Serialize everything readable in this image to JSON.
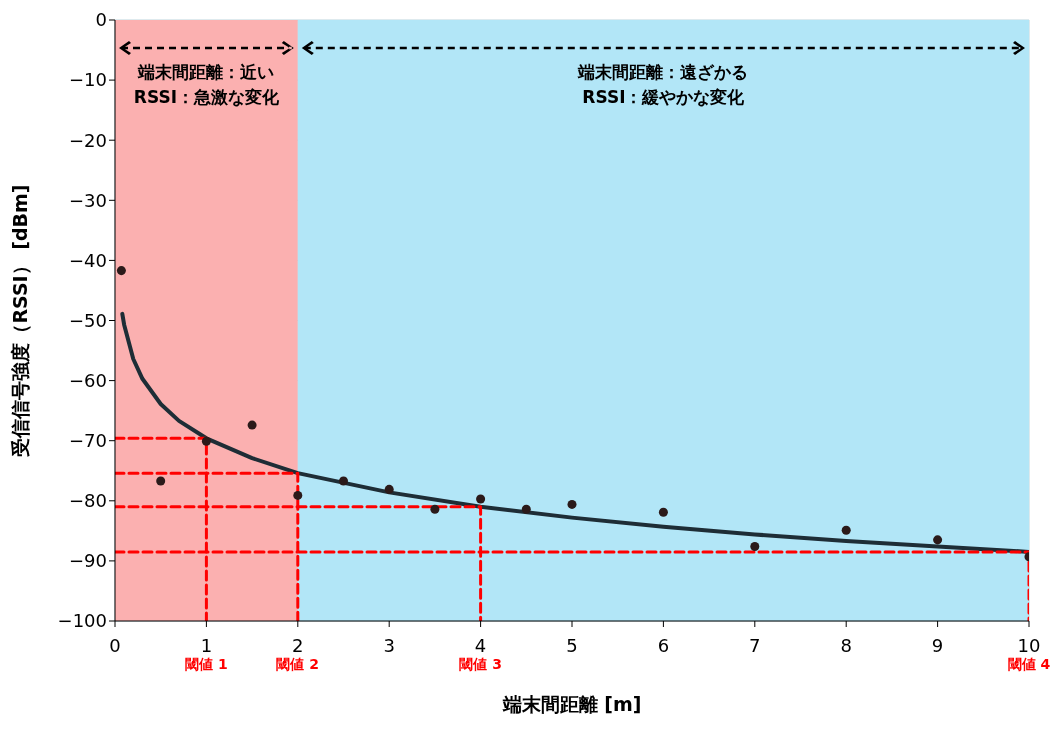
{
  "chart_data": {
    "type": "scatter",
    "xlabel": "端末間距離 [m]",
    "ylabel": "受信信号強度（RSSI） [dBm]",
    "xlim": [
      0,
      10
    ],
    "xticks": [
      0,
      1,
      2,
      3,
      4,
      5,
      6,
      7,
      8,
      9,
      10
    ],
    "ylim": [
      -100,
      0
    ],
    "yticks": [
      0,
      {
        "value": -10,
        "label": "−10"
      },
      {
        "value": -20,
        "label": "−20"
      },
      {
        "value": -30,
        "label": "−30"
      },
      {
        "value": -40,
        "label": "−40"
      },
      {
        "value": -50,
        "label": "−50"
      },
      {
        "value": -60,
        "label": "−60"
      },
      {
        "value": -70,
        "label": "−70"
      },
      {
        "value": -80,
        "label": "−80"
      },
      {
        "value": -90,
        "label": "−90"
      },
      {
        "value": -100,
        "label": "−100"
      }
    ],
    "grid": true,
    "marker": "circle",
    "series": [
      {
        "color": "#2b1a1a",
        "x": [
          0.07,
          0.5,
          1,
          1.5,
          2,
          2.5,
          3,
          3.5,
          4,
          4.5,
          5,
          6,
          7,
          8,
          9,
          10
        ],
        "values": [
          -41.7,
          -76.7,
          -70.1,
          -67.4,
          -79.1,
          -76.7,
          -78.1,
          -81.4,
          -79.7,
          -81.4,
          -80.6,
          -81.9,
          -87.6,
          -84.9,
          -86.5,
          -89.3
        ]
      },
      {
        "type": "line",
        "color": "#1e2d36",
        "marker": "none",
        "line_style": "solid",
        "x": [
          0.08,
          0.1,
          0.2,
          0.3,
          0.5,
          0.7,
          1,
          1.5,
          2,
          3,
          4,
          5,
          6,
          7,
          8,
          9,
          10
        ],
        "values": [
          -48.9,
          -50.7,
          -56.4,
          -59.7,
          -63.9,
          -66.7,
          -69.6,
          -72.9,
          -75.4,
          -78.6,
          -81.0,
          -82.8,
          -84.3,
          -85.6,
          -86.7,
          -87.6,
          -88.5
        ]
      },
      {
        "type": "line",
        "color": "#ff0000",
        "marker": "none",
        "line_style": "dashed",
        "x": [
          0,
          1,
          1
        ],
        "values": [
          -69.6,
          -69.6,
          -100
        ]
      },
      {
        "type": "line",
        "color": "#ff0000",
        "marker": "none",
        "line_style": "dashed",
        "x": [
          0,
          2,
          2
        ],
        "values": [
          -75.4,
          -75.4,
          -100
        ]
      },
      {
        "type": "line",
        "color": "#ff0000",
        "marker": "none",
        "line_style": "dashed",
        "x": [
          0,
          4,
          4
        ],
        "values": [
          -81.0,
          -81.0,
          -100
        ]
      },
      {
        "type": "line",
        "color": "#ff0000",
        "marker": "none",
        "line_style": "dashed",
        "x": [
          0,
          10,
          10
        ],
        "values": [
          -88.5,
          -88.5,
          -100
        ]
      }
    ],
    "bands": [
      {
        "axis": "x",
        "from": 0,
        "to": 2,
        "color": "#fbb0b0",
        "label": "端末間距離：近い\nRSSI：急激な変化"
      },
      {
        "axis": "x",
        "from": 2,
        "to": 10,
        "color": "#b2e6f7",
        "label": "端末間距離：遠ざかる\nRSSI：緩やかな変化"
      }
    ],
    "annotations": [
      {
        "text": "閾値 1",
        "x": 1,
        "y": -100
      },
      {
        "text": "閾値 2",
        "x": 2,
        "y": -100
      },
      {
        "text": "閾値 3",
        "x": 4,
        "y": -100
      },
      {
        "text": "閾値 4",
        "x": 10,
        "y": -100
      }
    ]
  }
}
